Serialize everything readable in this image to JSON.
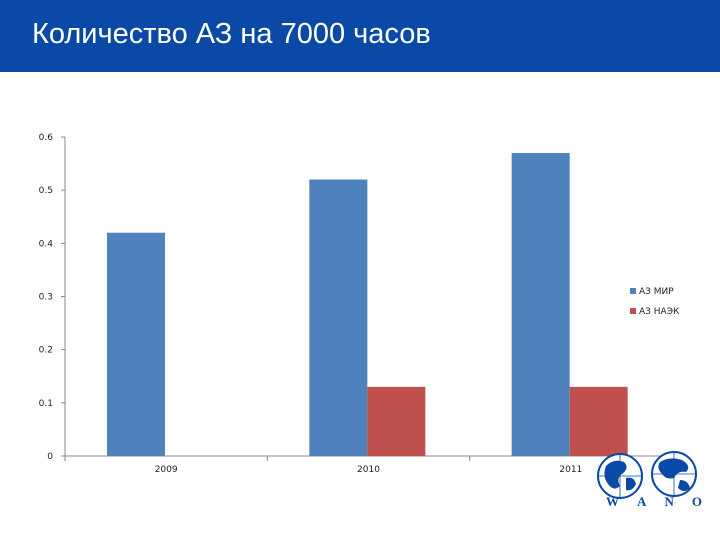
{
  "slide": {
    "title": "Количество АЗ на 7000 часов"
  },
  "logo": {
    "name": "wano-globe-logo",
    "letters": [
      "W",
      "A",
      "N",
      "O"
    ]
  },
  "chart_data": {
    "type": "bar",
    "categories": [
      "2009",
      "2010",
      "2011"
    ],
    "series": [
      {
        "name": "АЗ МИР",
        "values": [
          0.42,
          0.52,
          0.57
        ],
        "color": "#4f81bd"
      },
      {
        "name": "АЗ НАЭК",
        "values": [
          null,
          0.13,
          0.13
        ],
        "color": "#c0504d"
      }
    ],
    "title": "",
    "xlabel": "",
    "ylabel": "",
    "ylim": [
      0,
      0.6
    ],
    "yticks": [
      0,
      0.1,
      0.2,
      0.3,
      0.4,
      0.5,
      0.6
    ],
    "ytick_labels": [
      "0",
      "0.1",
      "0.2",
      "0.3",
      "0.4",
      "0.5",
      "0.6"
    ],
    "grid": false,
    "legend_position": "right"
  }
}
